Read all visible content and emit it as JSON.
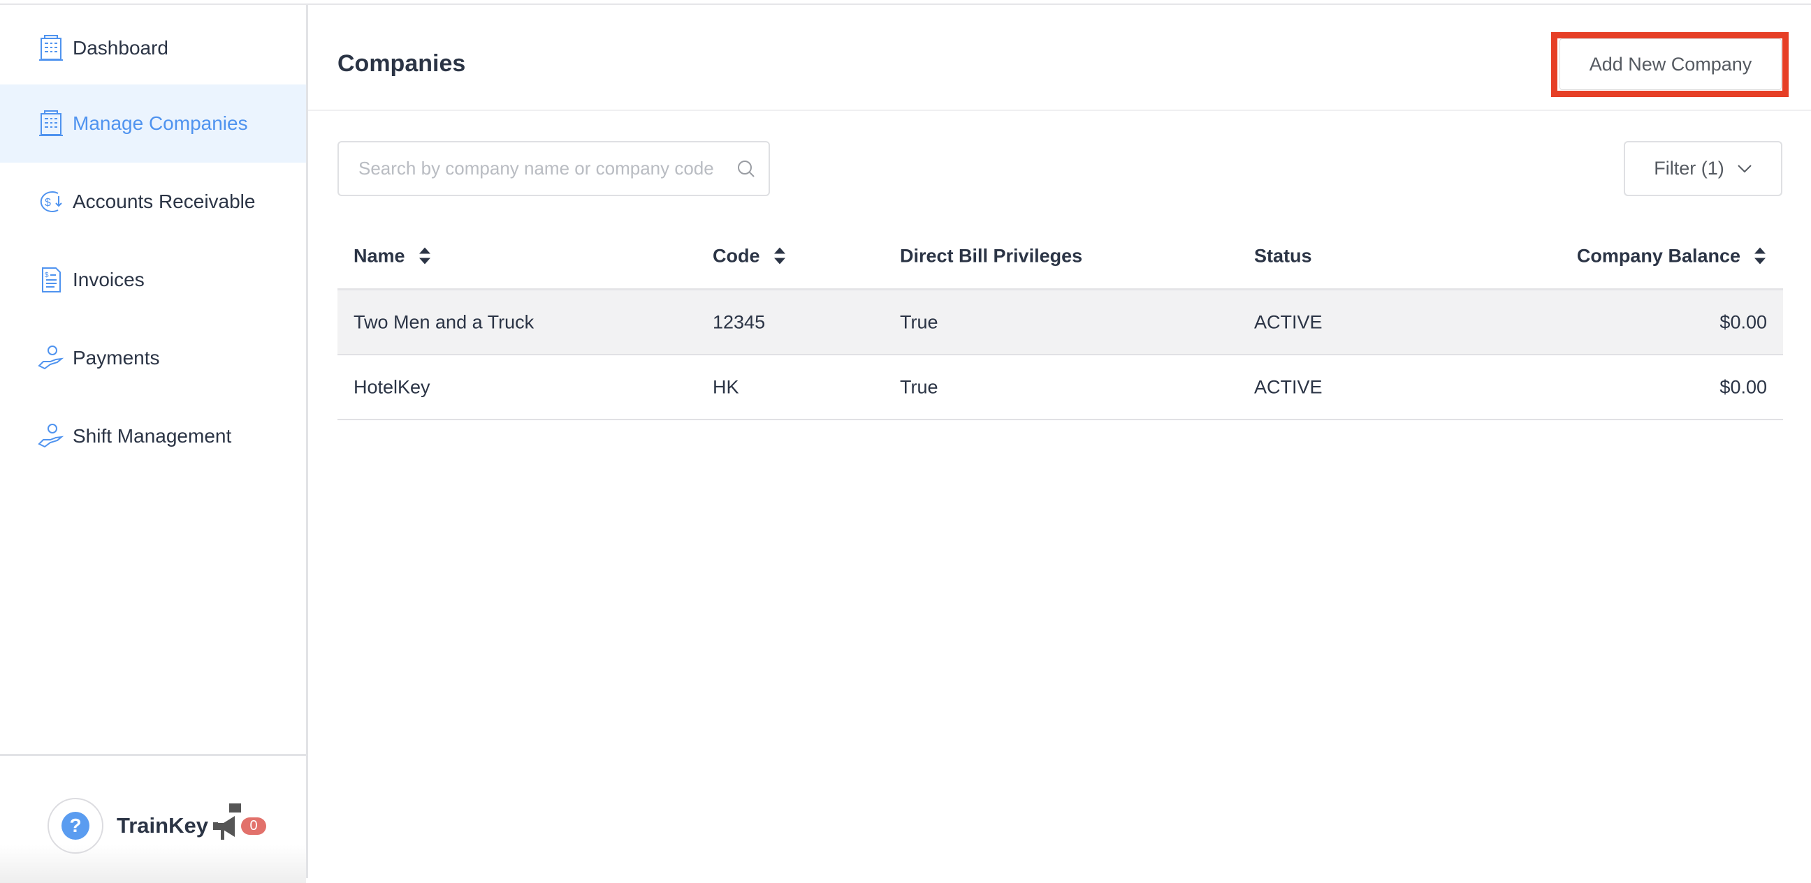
{
  "sidebar": {
    "items": [
      {
        "label": "Dashboard",
        "icon": "building-icon"
      },
      {
        "label": "Manage Companies",
        "icon": "building-icon",
        "active": true
      },
      {
        "label": "Accounts Receivable",
        "icon": "dollar-cycle-icon"
      },
      {
        "label": "Invoices",
        "icon": "invoice-icon"
      },
      {
        "label": "Payments",
        "icon": "hand-coin-icon"
      },
      {
        "label": "Shift Management",
        "icon": "hand-coin-icon"
      }
    ],
    "footer": {
      "help": "?",
      "brand": "TrainKey",
      "notification_count": "0"
    }
  },
  "header": {
    "title": "Companies",
    "add_button": "Add New Company"
  },
  "search": {
    "placeholder": "Search by company name or company code",
    "value": ""
  },
  "filter": {
    "label": "Filter (1)"
  },
  "table": {
    "columns": [
      "Name",
      "Code",
      "Direct Bill Privileges",
      "Status",
      "Company Balance"
    ],
    "rows": [
      [
        "Two Men and a Truck",
        "12345",
        "True",
        "ACTIVE",
        "$0.00"
      ],
      [
        "HotelKey",
        "HK",
        "True",
        "ACTIVE",
        "$0.00"
      ]
    ]
  },
  "colors": {
    "accent": "#4f93ef",
    "active_bg": "#ebf4fe",
    "highlight": "#e63f26",
    "badge": "#e2716b"
  }
}
